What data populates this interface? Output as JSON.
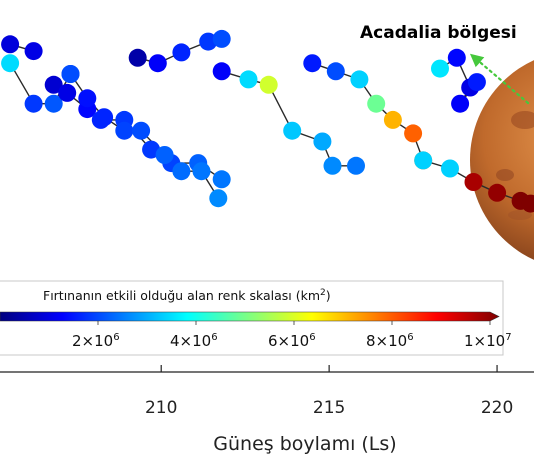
{
  "chart_data": {
    "type": "scatter",
    "xlabel": "Güneş boylamı (Ls)",
    "x_ticks": [
      210,
      215,
      220
    ],
    "xlim": [
      205.2,
      221.1
    ],
    "ylim": [
      0,
      10
    ],
    "colorbar": {
      "title": "Fırtınanın etkili olduğu alan renk skalası (km²)",
      "title_text": "Fırtınanın etkili olduğu alan renk skalası (km",
      "title_sup": "2",
      "title_close": ")",
      "range": [
        0,
        10000000
      ],
      "ticks": [
        {
          "value": 2000000,
          "mantissa": "2×10",
          "exp": "6"
        },
        {
          "value": 4000000,
          "mantissa": "4×10",
          "exp": "6"
        },
        {
          "value": 6000000,
          "mantissa": "6×10",
          "exp": "6"
        },
        {
          "value": 8000000,
          "mantissa": "8×10",
          "exp": "6"
        },
        {
          "value": 10000000,
          "mantissa": "1×10",
          "exp": "7"
        }
      ],
      "colors": [
        "#00007f",
        "#0000ff",
        "#0080ff",
        "#00ffff",
        "#80ff80",
        "#ffff00",
        "#ff8000",
        "#ff0000",
        "#7f0000"
      ]
    },
    "annotation": {
      "text": "Acadalia bölgesi",
      "color": "#5a9a3a"
    },
    "grid": false,
    "series": [
      {
        "points": [
          {
            "x": 205.5,
            "y": 9.1,
            "area": 900000
          },
          {
            "x": 206.2,
            "y": 8.85,
            "area": 1000000
          }
        ]
      },
      {
        "points": [
          {
            "x": 205.5,
            "y": 8.4,
            "area": 3400000
          },
          {
            "x": 206.2,
            "y": 6.9,
            "area": 1800000
          },
          {
            "x": 206.8,
            "y": 6.9,
            "area": 2100000
          },
          {
            "x": 207.3,
            "y": 8.0,
            "area": 2000000
          }
        ]
      },
      {
        "points": [
          {
            "x": 206.8,
            "y": 7.6,
            "area": 800000
          },
          {
            "x": 207.2,
            "y": 7.3,
            "area": 1000000
          },
          {
            "x": 207.8,
            "y": 6.7,
            "area": 1300000
          },
          {
            "x": 208.2,
            "y": 6.3,
            "area": 1600000
          },
          {
            "x": 208.9,
            "y": 6.3,
            "area": 1800000
          },
          {
            "x": 209.7,
            "y": 5.2,
            "area": 1800000
          },
          {
            "x": 210.3,
            "y": 4.7,
            "area": 1900000
          },
          {
            "x": 211.1,
            "y": 4.7,
            "area": 2200000
          },
          {
            "x": 211.8,
            "y": 4.1,
            "area": 2400000
          }
        ]
      },
      {
        "points": [
          {
            "x": 207.3,
            "y": 8.0,
            "area": 2000000
          },
          {
            "x": 207.8,
            "y": 7.1,
            "area": 1400000
          },
          {
            "x": 208.3,
            "y": 6.4,
            "area": 1600000
          },
          {
            "x": 208.9,
            "y": 5.9,
            "area": 1900000
          },
          {
            "x": 209.4,
            "y": 5.9,
            "area": 2000000
          },
          {
            "x": 210.1,
            "y": 5.0,
            "area": 2200000
          },
          {
            "x": 210.6,
            "y": 4.4,
            "area": 2300000
          },
          {
            "x": 211.2,
            "y": 4.4,
            "area": 2400000
          },
          {
            "x": 211.7,
            "y": 3.4,
            "area": 2600000
          }
        ]
      },
      {
        "points": [
          {
            "x": 209.3,
            "y": 8.6,
            "area": 400000
          },
          {
            "x": 209.9,
            "y": 8.4,
            "area": 1200000
          },
          {
            "x": 210.6,
            "y": 8.8,
            "area": 1600000
          },
          {
            "x": 211.4,
            "y": 9.2,
            "area": 1800000
          },
          {
            "x": 211.8,
            "y": 9.3,
            "area": 2000000
          }
        ]
      },
      {
        "points": [
          {
            "x": 211.8,
            "y": 8.1,
            "area": 1200000
          },
          {
            "x": 212.6,
            "y": 7.8,
            "area": 3400000
          },
          {
            "x": 213.2,
            "y": 7.6,
            "area": 5800000
          },
          {
            "x": 213.9,
            "y": 5.9,
            "area": 3200000
          },
          {
            "x": 214.8,
            "y": 5.5,
            "area": 2900000
          },
          {
            "x": 215.1,
            "y": 4.6,
            "area": 2600000
          },
          {
            "x": 215.8,
            "y": 4.6,
            "area": 2400000
          }
        ]
      },
      {
        "points": [
          {
            "x": 214.5,
            "y": 8.4,
            "area": 1500000
          },
          {
            "x": 215.2,
            "y": 8.1,
            "area": 2000000
          },
          {
            "x": 215.9,
            "y": 7.8,
            "area": 3300000
          },
          {
            "x": 216.4,
            "y": 6.9,
            "area": 4800000
          },
          {
            "x": 216.9,
            "y": 6.3,
            "area": 7000000
          },
          {
            "x": 217.5,
            "y": 5.8,
            "area": 7800000
          },
          {
            "x": 217.8,
            "y": 4.8,
            "area": 7500000
          }
        ]
      },
      {
        "points": [
          {
            "x": 218.3,
            "y": 8.2,
            "area": 3500000
          },
          {
            "x": 218.8,
            "y": 8.6,
            "area": 1300000
          },
          {
            "x": 219.2,
            "y": 7.5,
            "area": 1000000
          },
          {
            "x": 218.9,
            "y": 6.9,
            "area": 1200000
          },
          {
            "x": 219.4,
            "y": 7.7,
            "area": 1500000
          }
        ]
      },
      {
        "points": [
          {
            "x": 217.8,
            "y": 4.8,
            "area": 3300000
          },
          {
            "x": 218.6,
            "y": 4.5,
            "area": 3300000
          },
          {
            "x": 219.3,
            "y": 4.0,
            "area": 9600000
          },
          {
            "x": 220.0,
            "y": 3.6,
            "area": 9800000
          },
          {
            "x": 220.7,
            "y": 3.3,
            "area": 10000000
          },
          {
            "x": 221.0,
            "y": 3.2,
            "area": 10000000
          }
        ]
      }
    ]
  }
}
